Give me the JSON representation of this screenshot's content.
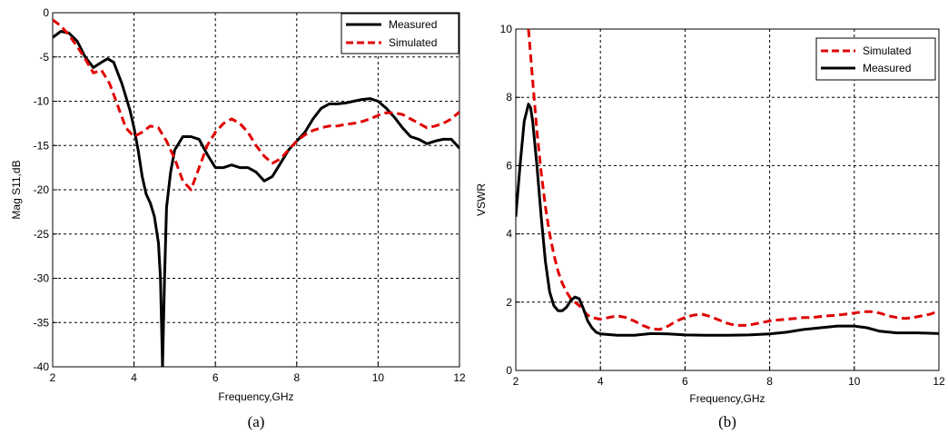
{
  "figure": {
    "panels": [
      "(a)",
      "(b)"
    ]
  },
  "chart_data": [
    {
      "type": "line",
      "caption": "(a)",
      "xlabel": "Frequency,GHz",
      "ylabel": "Mag S11,dB",
      "xlim": [
        2,
        12
      ],
      "ylim": [
        -40,
        0
      ],
      "xticks": [
        "2",
        "4",
        "6",
        "8",
        "10",
        "12"
      ],
      "yticks": [
        "0",
        "-5",
        "-10",
        "-15",
        "-20",
        "-25",
        "-30",
        "-35",
        "-40"
      ],
      "grid": true,
      "legend_position": "top-right",
      "series": [
        {
          "name": "Measured",
          "color": "#000000",
          "dash": "solid",
          "points": [
            [
              2.0,
              -2.8
            ],
            [
              2.2,
              -2.1
            ],
            [
              2.4,
              -2.3
            ],
            [
              2.6,
              -3.2
            ],
            [
              2.8,
              -5.0
            ],
            [
              3.0,
              -6.2
            ],
            [
              3.2,
              -5.6
            ],
            [
              3.35,
              -5.2
            ],
            [
              3.5,
              -5.6
            ],
            [
              3.7,
              -8.0
            ],
            [
              3.9,
              -11.0
            ],
            [
              4.0,
              -13.0
            ],
            [
              4.1,
              -15.5
            ],
            [
              4.2,
              -18.5
            ],
            [
              4.3,
              -20.5
            ],
            [
              4.4,
              -21.5
            ],
            [
              4.5,
              -23.0
            ],
            [
              4.6,
              -26.0
            ],
            [
              4.65,
              -30.0
            ],
            [
              4.7,
              -40.0
            ],
            [
              4.75,
              -30.0
            ],
            [
              4.8,
              -22.0
            ],
            [
              4.9,
              -18.0
            ],
            [
              5.0,
              -15.5
            ],
            [
              5.2,
              -14.0
            ],
            [
              5.4,
              -14.0
            ],
            [
              5.6,
              -14.3
            ],
            [
              5.8,
              -16.0
            ],
            [
              6.0,
              -17.5
            ],
            [
              6.2,
              -17.5
            ],
            [
              6.4,
              -17.2
            ],
            [
              6.6,
              -17.5
            ],
            [
              6.8,
              -17.5
            ],
            [
              7.0,
              -18.0
            ],
            [
              7.2,
              -19.0
            ],
            [
              7.4,
              -18.5
            ],
            [
              7.6,
              -17.0
            ],
            [
              7.8,
              -15.5
            ],
            [
              8.0,
              -14.5
            ],
            [
              8.2,
              -13.5
            ],
            [
              8.4,
              -12.0
            ],
            [
              8.6,
              -10.8
            ],
            [
              8.8,
              -10.3
            ],
            [
              9.0,
              -10.3
            ],
            [
              9.2,
              -10.2
            ],
            [
              9.4,
              -10.0
            ],
            [
              9.6,
              -9.8
            ],
            [
              9.8,
              -9.7
            ],
            [
              10.0,
              -10.0
            ],
            [
              10.2,
              -10.8
            ],
            [
              10.4,
              -11.8
            ],
            [
              10.6,
              -13.0
            ],
            [
              10.8,
              -14.0
            ],
            [
              11.0,
              -14.3
            ],
            [
              11.2,
              -14.8
            ],
            [
              11.4,
              -14.5
            ],
            [
              11.6,
              -14.3
            ],
            [
              11.8,
              -14.3
            ],
            [
              12.0,
              -15.3
            ]
          ]
        },
        {
          "name": "Simulated",
          "color": "#e00000",
          "dash": "dashed",
          "points": [
            [
              2.0,
              -0.8
            ],
            [
              2.2,
              -1.5
            ],
            [
              2.4,
              -2.5
            ],
            [
              2.6,
              -3.8
            ],
            [
              2.8,
              -5.2
            ],
            [
              3.0,
              -6.8
            ],
            [
              3.2,
              -6.5
            ],
            [
              3.4,
              -8.0
            ],
            [
              3.6,
              -10.5
            ],
            [
              3.8,
              -13.0
            ],
            [
              4.0,
              -14.0
            ],
            [
              4.2,
              -13.5
            ],
            [
              4.4,
              -12.8
            ],
            [
              4.6,
              -13.0
            ],
            [
              4.8,
              -14.5
            ],
            [
              5.0,
              -16.5
            ],
            [
              5.2,
              -19.0
            ],
            [
              5.4,
              -20.0
            ],
            [
              5.6,
              -17.5
            ],
            [
              5.8,
              -15.0
            ],
            [
              6.0,
              -13.5
            ],
            [
              6.2,
              -12.5
            ],
            [
              6.4,
              -12.0
            ],
            [
              6.6,
              -12.5
            ],
            [
              6.8,
              -13.5
            ],
            [
              7.0,
              -15.0
            ],
            [
              7.2,
              -16.2
            ],
            [
              7.4,
              -17.0
            ],
            [
              7.6,
              -16.5
            ],
            [
              7.8,
              -15.5
            ],
            [
              8.0,
              -14.5
            ],
            [
              8.2,
              -13.8
            ],
            [
              8.4,
              -13.3
            ],
            [
              8.6,
              -13.0
            ],
            [
              8.8,
              -12.8
            ],
            [
              9.0,
              -12.8
            ],
            [
              9.2,
              -12.6
            ],
            [
              9.4,
              -12.5
            ],
            [
              9.6,
              -12.3
            ],
            [
              9.8,
              -12.0
            ],
            [
              10.0,
              -11.6
            ],
            [
              10.2,
              -11.3
            ],
            [
              10.4,
              -11.3
            ],
            [
              10.6,
              -11.5
            ],
            [
              10.8,
              -12.0
            ],
            [
              11.0,
              -12.5
            ],
            [
              11.2,
              -13.0
            ],
            [
              11.4,
              -12.8
            ],
            [
              11.6,
              -12.5
            ],
            [
              11.8,
              -12.0
            ],
            [
              12.0,
              -11.2
            ]
          ]
        }
      ]
    },
    {
      "type": "line",
      "caption": "(b)",
      "xlabel": "Frequency,GHz",
      "ylabel": "VSWR",
      "xlim": [
        2,
        12
      ],
      "ylim": [
        0,
        10
      ],
      "xticks": [
        "2",
        "4",
        "6",
        "8",
        "10",
        "12"
      ],
      "yticks": [
        "10",
        "8",
        "6",
        "4",
        "2",
        "0"
      ],
      "grid": true,
      "legend_position": "top-right",
      "series": [
        {
          "name": "Simulated",
          "color": "#e00000",
          "dash": "dashed",
          "points": [
            [
              2.3,
              10.0
            ],
            [
              2.4,
              8.5
            ],
            [
              2.5,
              7.0
            ],
            [
              2.6,
              5.8
            ],
            [
              2.7,
              4.8
            ],
            [
              2.8,
              4.0
            ],
            [
              2.9,
              3.4
            ],
            [
              3.0,
              2.9
            ],
            [
              3.1,
              2.55
            ],
            [
              3.2,
              2.3
            ],
            [
              3.3,
              2.1
            ],
            [
              3.4,
              2.0
            ],
            [
              3.5,
              1.9
            ],
            [
              3.6,
              1.75
            ],
            [
              3.7,
              1.62
            ],
            [
              3.8,
              1.55
            ],
            [
              4.0,
              1.5
            ],
            [
              4.2,
              1.55
            ],
            [
              4.4,
              1.6
            ],
            [
              4.6,
              1.55
            ],
            [
              4.8,
              1.45
            ],
            [
              5.0,
              1.32
            ],
            [
              5.2,
              1.22
            ],
            [
              5.4,
              1.2
            ],
            [
              5.6,
              1.3
            ],
            [
              5.8,
              1.45
            ],
            [
              6.0,
              1.55
            ],
            [
              6.2,
              1.62
            ],
            [
              6.4,
              1.65
            ],
            [
              6.6,
              1.58
            ],
            [
              6.8,
              1.48
            ],
            [
              7.0,
              1.38
            ],
            [
              7.2,
              1.32
            ],
            [
              7.4,
              1.32
            ],
            [
              7.6,
              1.35
            ],
            [
              7.8,
              1.4
            ],
            [
              8.0,
              1.45
            ],
            [
              8.2,
              1.48
            ],
            [
              8.4,
              1.5
            ],
            [
              8.6,
              1.52
            ],
            [
              8.8,
              1.55
            ],
            [
              9.0,
              1.55
            ],
            [
              9.2,
              1.58
            ],
            [
              9.4,
              1.6
            ],
            [
              9.6,
              1.62
            ],
            [
              9.8,
              1.65
            ],
            [
              10.0,
              1.68
            ],
            [
              10.2,
              1.72
            ],
            [
              10.4,
              1.72
            ],
            [
              10.6,
              1.68
            ],
            [
              10.8,
              1.6
            ],
            [
              11.0,
              1.55
            ],
            [
              11.2,
              1.52
            ],
            [
              11.4,
              1.55
            ],
            [
              11.6,
              1.6
            ],
            [
              11.8,
              1.65
            ],
            [
              12.0,
              1.75
            ]
          ]
        },
        {
          "name": "Measured",
          "color": "#000000",
          "dash": "solid",
          "points": [
            [
              2.0,
              4.5
            ],
            [
              2.1,
              6.0
            ],
            [
              2.2,
              7.3
            ],
            [
              2.3,
              7.8
            ],
            [
              2.35,
              7.7
            ],
            [
              2.4,
              7.3
            ],
            [
              2.5,
              6.0
            ],
            [
              2.6,
              4.5
            ],
            [
              2.7,
              3.2
            ],
            [
              2.8,
              2.3
            ],
            [
              2.9,
              1.9
            ],
            [
              3.0,
              1.75
            ],
            [
              3.1,
              1.75
            ],
            [
              3.2,
              1.85
            ],
            [
              3.3,
              2.05
            ],
            [
              3.4,
              2.15
            ],
            [
              3.5,
              2.1
            ],
            [
              3.6,
              1.8
            ],
            [
              3.7,
              1.45
            ],
            [
              3.8,
              1.25
            ],
            [
              3.9,
              1.12
            ],
            [
              4.0,
              1.07
            ],
            [
              4.4,
              1.03
            ],
            [
              4.8,
              1.03
            ],
            [
              5.2,
              1.08
            ],
            [
              5.6,
              1.07
            ],
            [
              6.0,
              1.04
            ],
            [
              6.5,
              1.03
            ],
            [
              7.0,
              1.03
            ],
            [
              7.5,
              1.04
            ],
            [
              8.0,
              1.07
            ],
            [
              8.4,
              1.12
            ],
            [
              8.8,
              1.2
            ],
            [
              9.2,
              1.25
            ],
            [
              9.6,
              1.3
            ],
            [
              10.0,
              1.3
            ],
            [
              10.3,
              1.25
            ],
            [
              10.6,
              1.15
            ],
            [
              11.0,
              1.1
            ],
            [
              11.5,
              1.1
            ],
            [
              12.0,
              1.08
            ]
          ]
        }
      ]
    }
  ]
}
